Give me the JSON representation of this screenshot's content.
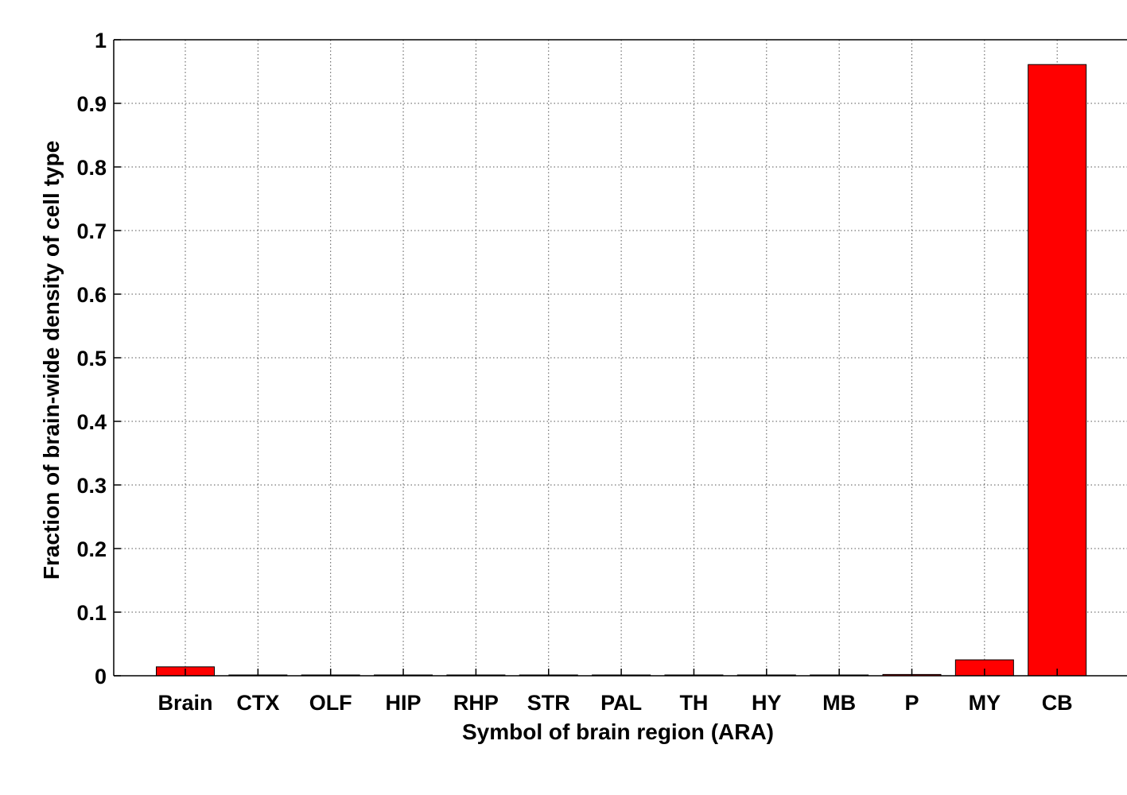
{
  "chart_data": {
    "type": "bar",
    "categories": [
      "Brain",
      "CTX",
      "OLF",
      "HIP",
      "RHP",
      "STR",
      "PAL",
      "TH",
      "HY",
      "MB",
      "P",
      "MY",
      "CB"
    ],
    "values": [
      0.014,
      0.0005,
      0.0005,
      0.0005,
      0.0005,
      0.0005,
      0.0005,
      0.0005,
      0.0005,
      0.0005,
      0.002,
      0.025,
      0.961
    ],
    "xlabel": "Symbol of brain region (ARA)",
    "ylabel": "Fraction of brain-wide density of cell type",
    "ylim": [
      0,
      1
    ],
    "yticks": [
      "0",
      "0.1",
      "0.2",
      "0.3",
      "0.4",
      "0.5",
      "0.6",
      "0.7",
      "0.8",
      "0.9",
      "1"
    ],
    "grid": true,
    "bar_color": "#ff0000",
    "bar_edge_color": "#000000"
  }
}
